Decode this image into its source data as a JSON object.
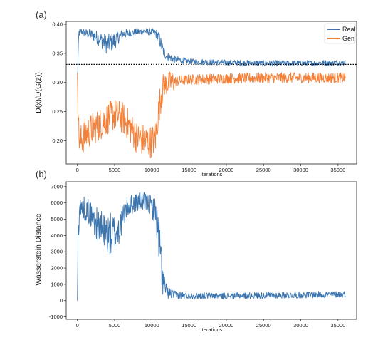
{
  "chart_data": [
    {
      "type": "line",
      "panel_label": "(a)",
      "xlabel": "Iterations",
      "ylabel": "D(x)/D(G(z))",
      "xlim": [
        -1500,
        37500
      ],
      "ylim": [
        0.16,
        0.405
      ],
      "xticks": [
        0,
        5000,
        10000,
        15000,
        20000,
        25000,
        30000,
        35000
      ],
      "yticks": [
        0.2,
        0.25,
        0.3,
        0.35,
        0.4
      ],
      "ytick_labels": [
        "0.20",
        "0.25",
        "0.30",
        "0.35",
        "0.40"
      ],
      "legend": {
        "position": "top-right",
        "entries": [
          "Real",
          "Gen"
        ]
      },
      "reference_line": {
        "y": 0.331,
        "style": "dotted",
        "color": "#000000"
      },
      "series": [
        {
          "name": "Real",
          "color": "#3b75af",
          "x": [
            0,
            200,
            500,
            1000,
            2000,
            3000,
            4000,
            5000,
            6000,
            7000,
            8000,
            9000,
            10000,
            10500,
            11000,
            11500,
            12000,
            13000,
            15000,
            20000,
            25000,
            30000,
            36000
          ],
          "mean": [
            0.3,
            0.385,
            0.388,
            0.385,
            0.382,
            0.375,
            0.365,
            0.372,
            0.383,
            0.385,
            0.387,
            0.388,
            0.387,
            0.385,
            0.375,
            0.355,
            0.345,
            0.34,
            0.336,
            0.334,
            0.333,
            0.333,
            0.334
          ],
          "band": [
            0.02,
            0.007,
            0.006,
            0.007,
            0.01,
            0.013,
            0.017,
            0.015,
            0.008,
            0.007,
            0.006,
            0.006,
            0.006,
            0.008,
            0.012,
            0.01,
            0.008,
            0.006,
            0.005,
            0.005,
            0.005,
            0.005,
            0.005
          ]
        },
        {
          "name": "Gen",
          "color": "#f47f36",
          "x": [
            0,
            200,
            500,
            1000,
            2000,
            3000,
            4000,
            5000,
            6000,
            7000,
            8000,
            9000,
            10000,
            10500,
            11000,
            11500,
            12000,
            13000,
            15000,
            20000,
            25000,
            30000,
            36000
          ],
          "mean": [
            0.33,
            0.205,
            0.2,
            0.21,
            0.22,
            0.228,
            0.238,
            0.245,
            0.24,
            0.225,
            0.205,
            0.2,
            0.198,
            0.205,
            0.26,
            0.295,
            0.298,
            0.302,
            0.305,
            0.307,
            0.308,
            0.308,
            0.308
          ]
        }
      ]
    },
    {
      "type": "line",
      "panel_label": "(b)",
      "xlabel": "Iterations",
      "ylabel": "Wasserstein Distance",
      "xlim": [
        -1500,
        37500
      ],
      "ylim": [
        -1150,
        7300
      ],
      "xticks": [
        0,
        5000,
        10000,
        15000,
        20000,
        25000,
        30000,
        35000
      ],
      "yticks": [
        -1000,
        0,
        1000,
        2000,
        3000,
        4000,
        5000,
        6000,
        7000
      ],
      "series": [
        {
          "name": "",
          "color": "#3b75af",
          "x": [
            0,
            100,
            300,
            800,
            1500,
            2500,
            3500,
            4500,
            5500,
            6500,
            7500,
            8500,
            9500,
            10500,
            11000,
            11500,
            12000,
            13000,
            15000,
            20000,
            25000,
            30000,
            36000
          ],
          "mean": [
            0,
            4200,
            5600,
            5700,
            5500,
            4800,
            4200,
            4000,
            4300,
            5600,
            6000,
            6100,
            6000,
            5500,
            3500,
            1200,
            500,
            350,
            300,
            300,
            320,
            350,
            400
          ],
          "band": [
            0,
            900,
            700,
            700,
            800,
            1000,
            1200,
            1400,
            1100,
            700,
            600,
            600,
            600,
            800,
            1600,
            1000,
            400,
            250,
            200,
            200,
            200,
            200,
            200
          ]
        }
      ]
    }
  ]
}
